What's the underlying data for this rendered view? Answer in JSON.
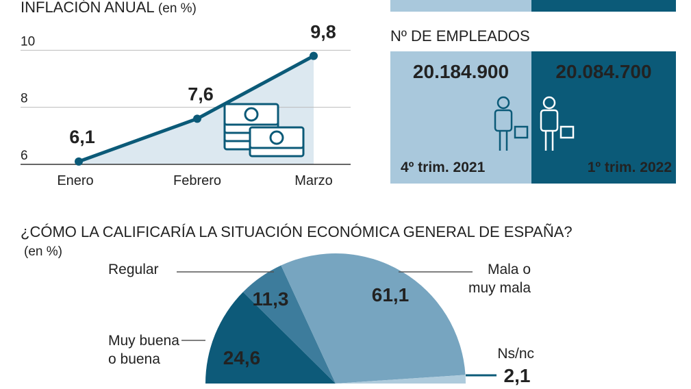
{
  "chart_data": [
    {
      "type": "line",
      "title": "INFLACIÓN ANUAL",
      "subtitle": "(en %)",
      "categories": [
        "Enero",
        "Febrero",
        "Marzo"
      ],
      "values": [
        6.1,
        7.6,
        9.8
      ],
      "value_labels": [
        "6,1",
        "7,6",
        "9,8"
      ],
      "color": "#0b5a78",
      "area_color": "#dce8f0",
      "ylim": [
        6,
        10.8
      ],
      "yticks": [
        6,
        8,
        10
      ],
      "grid": true
    },
    {
      "type": "cards",
      "title": "Nº DE EMPLEADOS",
      "categories": [
        "4º trim. 2021",
        "1º trim. 2022"
      ],
      "values": [
        20184900,
        20084700
      ],
      "value_labels": [
        "20.184.900",
        "20.084.700"
      ],
      "colors": [
        "#a9c8dc",
        "#0b5a78"
      ]
    },
    {
      "type": "pie",
      "title": "¿CÓMO LA CALIFICARÍA LA SITUACIÓN ECONÓMICA GENERAL DE ESPAÑA?",
      "subtitle": "(en %)",
      "categories": [
        "Muy buena o buena",
        "Regular",
        "Mala o muy mala",
        "Ns/nc"
      ],
      "values": [
        24.6,
        11.3,
        61.1,
        2.1
      ],
      "value_labels": [
        "24,6",
        "11,3",
        "61,1",
        "2,1"
      ],
      "colors": [
        "#0d5a79",
        "#3d7c9c",
        "#77a5c0",
        "#aecbdc"
      ]
    }
  ]
}
